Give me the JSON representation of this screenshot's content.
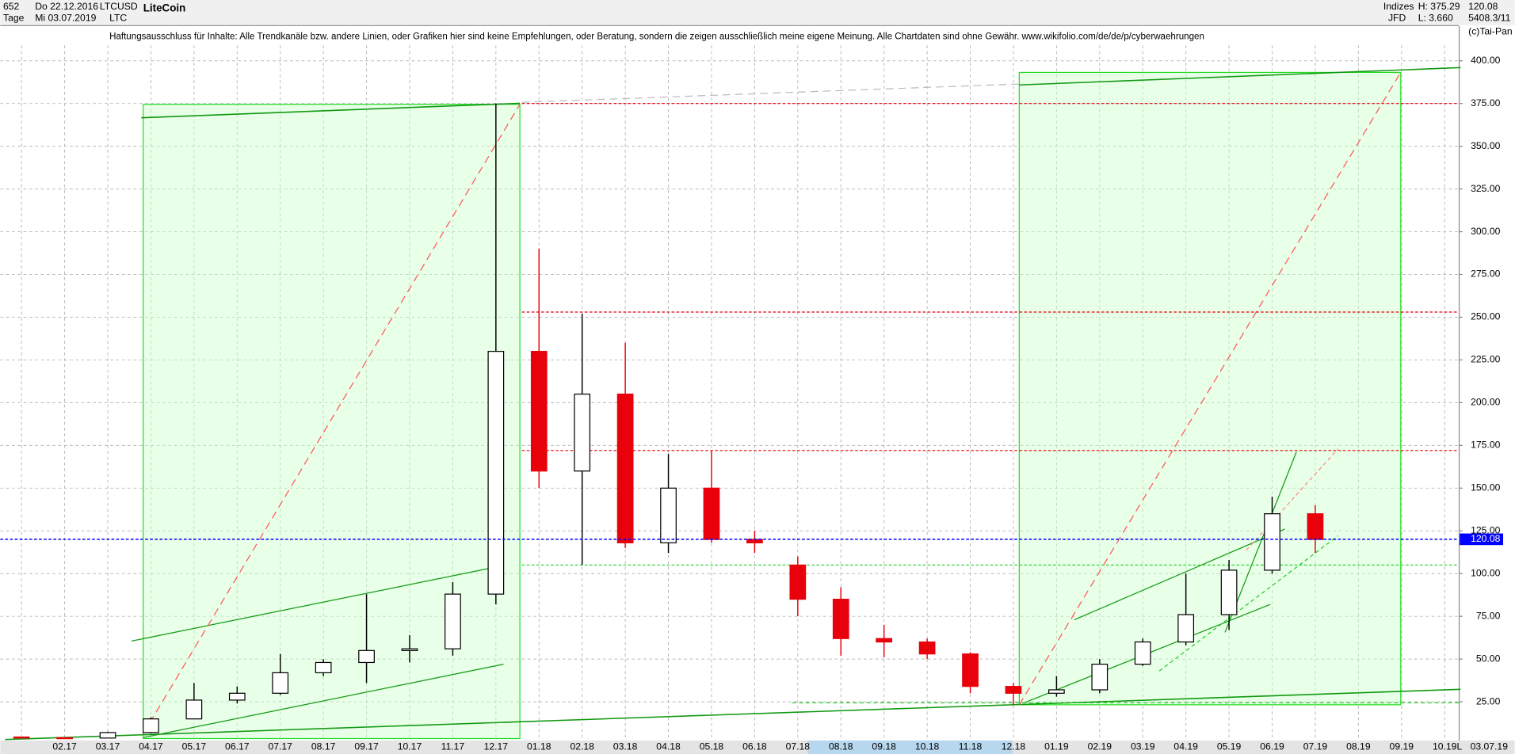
{
  "header": {
    "id": "652",
    "date_from": "Do 22.12.2016",
    "symbol": "LTCUSD",
    "name": "LiteCoin",
    "period": "Tage",
    "date_to": "Mi 03.07.2019",
    "short": "LTC",
    "disclaimer": "Haftungsausschluss für Inhalte: Alle Trendkanäle bzw. andere Linien, oder Grafiken hier sind keine Empfehlungen, oder Beratung, sondern die zeigen ausschließlich meine eigene Meinung. Alle Chartdaten sind ohne Gewähr.  www.wikifolio.com/de/de/p/cyberwaehrungen",
    "group": "Indizes",
    "broker": "JFD",
    "high": "H: 375.29",
    "low": "L: 3.660",
    "extra": "5408.3/11",
    "copyright": "(c)Tai-Pan",
    "scale_mode": "L",
    "end_date": "03.07.19"
  },
  "chart_data": {
    "type": "candlestick",
    "title": "LiteCoin",
    "categories": [
      null,
      "02.17",
      "03.17",
      "04.17",
      "05.17",
      "06.17",
      "07.17",
      "08.17",
      "09.17",
      "10.17",
      "11.17",
      "12.17",
      "01.18",
      "02.18",
      "03.18",
      "04.18",
      "05.18",
      "06.18",
      "07.18",
      "08.18",
      "09.18",
      "10.18",
      "11.18",
      "12.18",
      "01.19",
      "02.19",
      "03.19",
      "04.19",
      "05.19",
      "06.19",
      "07.19",
      "08.19",
      "09.19",
      "10.19"
    ],
    "open": [
      4.4,
      4.0,
      3.8,
      7.0,
      15,
      26,
      30,
      42,
      48,
      55,
      56,
      88,
      230,
      160,
      205,
      118,
      150,
      120,
      105,
      85,
      62,
      60,
      53,
      34,
      30,
      32,
      47,
      60,
      76,
      102,
      135,
      null,
      null,
      null
    ],
    "high": [
      4.6,
      4.1,
      7.5,
      16,
      36,
      34,
      53,
      50,
      88,
      64,
      95,
      375,
      290,
      252,
      235,
      170,
      172,
      125,
      110,
      92,
      70,
      62,
      54,
      36,
      40,
      50,
      62,
      100,
      108,
      145,
      140,
      null,
      null,
      null
    ],
    "low": [
      3.7,
      3.7,
      3.6,
      6.5,
      15,
      24,
      29,
      40,
      36,
      48,
      52,
      82,
      150,
      105,
      115,
      112,
      118,
      112,
      75,
      52,
      51,
      50,
      30,
      23,
      28,
      30,
      46,
      58,
      67,
      100,
      112,
      null,
      null,
      null
    ],
    "close": [
      4.0,
      3.8,
      7.0,
      15,
      26,
      30,
      42,
      48,
      55,
      56,
      88,
      230,
      160,
      205,
      118,
      150,
      120,
      118,
      85,
      62,
      60,
      53,
      34,
      30,
      32,
      47,
      60,
      76,
      102,
      135,
      120,
      null,
      null,
      null
    ],
    "up_color": "#000000",
    "down_color": "#e8000b",
    "last_price": 120.08,
    "last_price_color": "#0000ff",
    "resistance_levels": [
      375,
      253,
      172
    ],
    "resistance_color": "#e8000b",
    "support_levels": [
      105
    ],
    "support_color": "#22cc22",
    "ylim": [
      3.5,
      420.3
    ],
    "yticks": [
      {
        "value": 25,
        "label": "25.00"
      },
      {
        "value": 50,
        "label": "50.00"
      },
      {
        "value": 75,
        "label": "75.00"
      },
      {
        "value": 100,
        "label": "100.00"
      },
      {
        "value": 125,
        "label": "125.00"
      },
      {
        "value": 150,
        "label": "150.00"
      },
      {
        "value": 175,
        "label": "175.00"
      },
      {
        "value": 200,
        "label": "200.00"
      },
      {
        "value": 225,
        "label": "225.00"
      },
      {
        "value": 250,
        "label": "250.00"
      },
      {
        "value": 275,
        "label": "275.00"
      },
      {
        "value": 300,
        "label": "300.00"
      },
      {
        "value": 325,
        "label": "325.00"
      },
      {
        "value": 350,
        "label": "350.00"
      },
      {
        "value": 375,
        "label": "375.00"
      },
      {
        "value": 400,
        "label": "400.00"
      }
    ],
    "grid": true
  }
}
